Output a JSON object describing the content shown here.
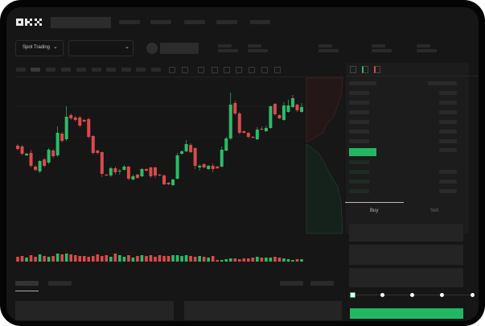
{
  "header": {
    "logo": "OKX",
    "market_selector": "Spot Trading",
    "chevron": "chevron-down-icon"
  },
  "order_form": {
    "tabs": [
      {
        "label": "Buy",
        "active": true
      },
      {
        "label": "Sell",
        "active": false
      }
    ],
    "leverage_slider": {
      "value_fraction": 0,
      "stops": 5
    },
    "submit_color": "#22b861"
  },
  "colors": {
    "up": "#2dbb68",
    "down": "#dc4a4a",
    "background": "#161616",
    "panel": "#1c1c1c"
  },
  "chart_data": {
    "type": "candlestick",
    "candles_ohlc": [
      [
        69,
        71,
        63,
        65
      ],
      [
        68,
        70,
        57,
        59
      ],
      [
        57,
        60,
        56,
        59
      ],
      [
        60,
        64,
        42,
        44
      ],
      [
        43,
        45,
        37,
        39
      ],
      [
        37,
        51,
        35,
        50
      ],
      [
        52,
        54,
        42,
        44
      ],
      [
        48,
        66,
        46,
        64
      ],
      [
        63,
        65,
        54,
        56
      ],
      [
        57,
        93,
        55,
        85
      ],
      [
        84,
        86,
        73,
        75
      ],
      [
        77,
        118,
        75,
        105
      ],
      [
        107,
        109,
        101,
        103
      ],
      [
        104,
        106,
        99,
        101
      ],
      [
        104,
        106,
        92,
        94
      ],
      [
        101,
        102,
        98,
        99
      ],
      [
        102,
        104,
        78,
        80
      ],
      [
        81,
        82,
        58,
        60
      ],
      [
        63,
        64,
        58,
        60
      ],
      [
        61,
        62,
        30,
        34
      ],
      [
        33,
        34,
        31,
        32
      ],
      [
        32,
        43,
        30,
        41
      ],
      [
        41,
        43,
        33,
        36
      ],
      [
        37,
        40,
        33,
        38
      ],
      [
        39,
        45,
        38,
        43
      ],
      [
        43,
        44,
        26,
        28
      ],
      [
        27,
        33,
        26,
        31
      ],
      [
        33,
        34,
        28,
        29
      ],
      [
        31,
        41,
        30,
        40
      ],
      [
        40,
        41,
        37,
        38
      ],
      [
        42,
        43,
        29,
        31
      ],
      [
        42,
        43,
        29,
        32
      ],
      [
        33,
        34,
        31,
        32
      ],
      [
        32,
        33,
        20,
        21
      ],
      [
        23,
        24,
        20,
        21
      ],
      [
        20,
        28,
        19,
        27
      ],
      [
        28,
        60,
        27,
        57
      ],
      [
        59,
        63,
        58,
        62
      ],
      [
        62,
        76,
        61,
        71
      ],
      [
        70,
        72,
        60,
        61
      ],
      [
        66,
        67,
        40,
        44
      ],
      [
        42,
        46,
        38,
        44
      ],
      [
        46,
        47,
        41,
        42
      ],
      [
        40,
        45,
        39,
        44
      ],
      [
        44,
        47,
        36,
        40
      ],
      [
        43,
        44,
        40,
        41
      ],
      [
        43,
        68,
        42,
        64
      ],
      [
        63,
        80,
        62,
        78
      ],
      [
        78,
        135,
        76,
        120
      ],
      [
        122,
        125,
        107,
        109
      ],
      [
        109,
        111,
        83,
        85
      ],
      [
        87,
        88,
        84,
        85
      ],
      [
        85,
        86,
        78,
        80
      ],
      [
        80,
        81,
        78,
        79
      ],
      [
        77,
        92,
        76,
        89
      ],
      [
        90,
        93,
        88,
        89
      ],
      [
        87,
        94,
        86,
        91
      ],
      [
        91,
        119,
        90,
        118
      ],
      [
        121,
        122,
        106,
        108
      ],
      [
        107,
        108,
        102,
        103
      ],
      [
        101,
        123,
        100,
        119
      ],
      [
        111,
        126,
        110,
        119
      ],
      [
        117,
        132,
        116,
        128
      ],
      [
        120,
        121,
        111,
        113
      ],
      [
        111,
        122,
        110,
        117
      ]
    ],
    "volumes": [
      6,
      7,
      5,
      8,
      6,
      9,
      7,
      6,
      7,
      10,
      9,
      10,
      9,
      8,
      7,
      7,
      6,
      7,
      9,
      7,
      8,
      6,
      10,
      8,
      6,
      8,
      5,
      7,
      8,
      7,
      8,
      6,
      8,
      7,
      7,
      8,
      8,
      7,
      8,
      7,
      6,
      7,
      6,
      5,
      7,
      2,
      2,
      3,
      4,
      4,
      3,
      4,
      4,
      5,
      6,
      5,
      5,
      5,
      6,
      5,
      4,
      3,
      2,
      3,
      3
    ],
    "depth": {
      "asks_side": "top",
      "bids_side": "bottom"
    }
  }
}
